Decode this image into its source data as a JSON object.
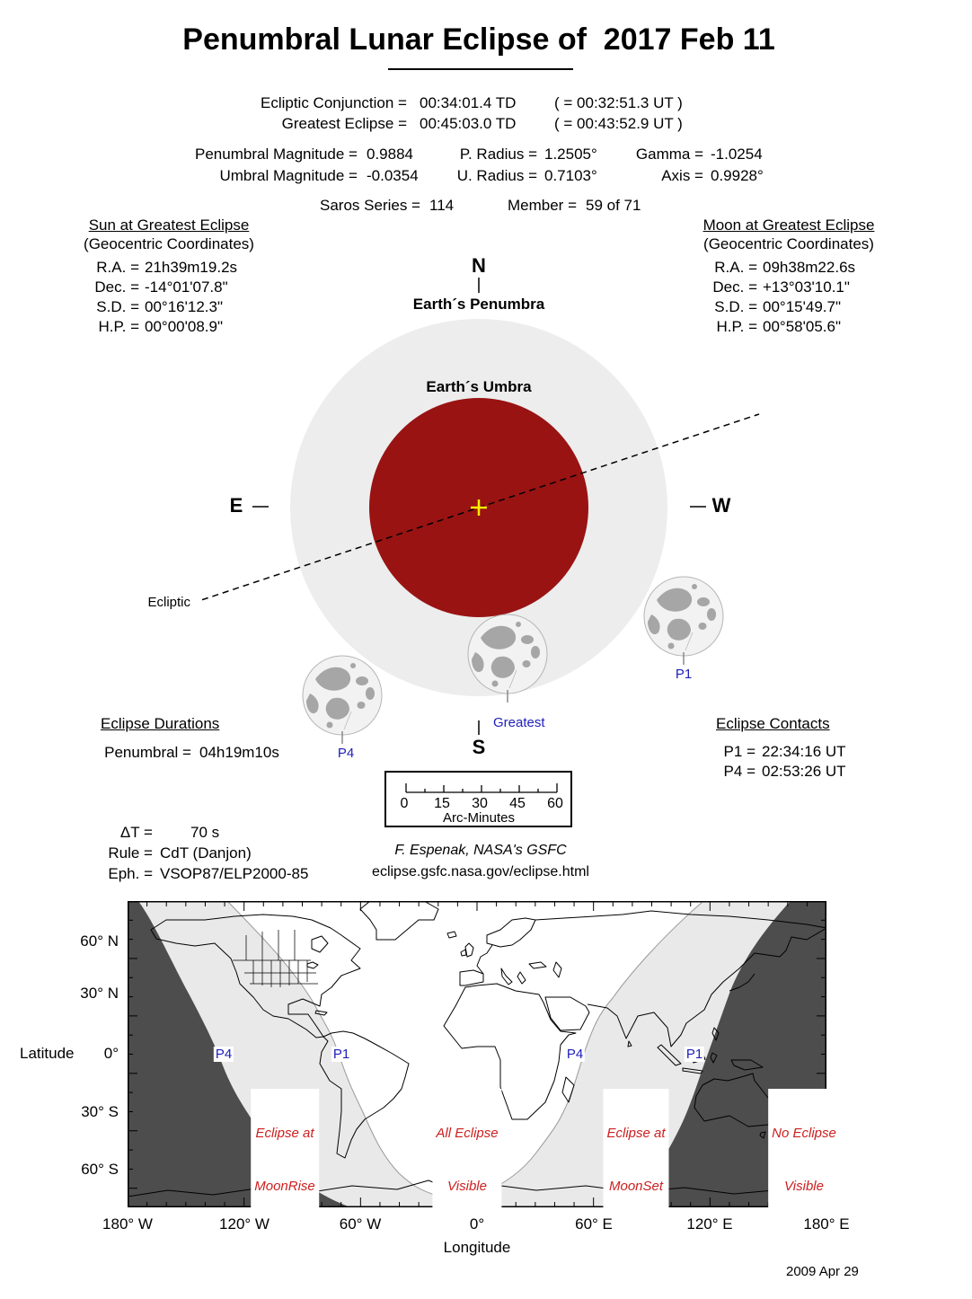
{
  "title": "Penumbral Lunar Eclipse of  2017 Feb 11",
  "header": {
    "conjunction_label": "Ecliptic Conjunction =",
    "conjunction_td": "00:34:01.4 TD",
    "conjunction_ut": "( = 00:32:51.3 UT )",
    "greatest_label": "Greatest Eclipse =",
    "greatest_td": "00:45:03.0 TD",
    "greatest_ut": "( = 00:43:52.9 UT )",
    "pen_mag_label": "Penumbral Magnitude =",
    "pen_mag": "0.9884",
    "umb_mag_label": "Umbral Magnitude =",
    "umb_mag": "-0.0354",
    "p_radius_label": "P. Radius =",
    "p_radius": "1.2505°",
    "u_radius_label": "U. Radius =",
    "u_radius": "0.7103°",
    "gamma_label": "Gamma =",
    "gamma": "-1.0254",
    "axis_label": "Axis =",
    "axis": "0.9928°",
    "saros_label": "Saros Series =",
    "saros": "114",
    "member_label": "Member =",
    "member": "59 of 71"
  },
  "sun": {
    "heading": "Sun at Greatest Eclipse",
    "subheading": "(Geocentric Coordinates)",
    "rows": [
      {
        "label": "R.A. =",
        "value": "21h39m19.2s"
      },
      {
        "label": "Dec. =",
        "value": "-14°01'07.8\""
      },
      {
        "label": "S.D. =",
        "value": "00°16'12.3\""
      },
      {
        "label": "H.P. =",
        "value": "00°00'08.9\""
      }
    ]
  },
  "moon": {
    "heading": "Moon at Greatest Eclipse",
    "subheading": "(Geocentric Coordinates)",
    "rows": [
      {
        "label": "R.A. =",
        "value": "09h38m22.6s"
      },
      {
        "label": "Dec. =",
        "value": "+13°03'10.1\""
      },
      {
        "label": "S.D. =",
        "value": "00°15'49.7\""
      },
      {
        "label": "H.P. =",
        "value": "00°58'05.6\""
      }
    ]
  },
  "diagram": {
    "north": "N",
    "south": "S",
    "east": "E",
    "west": "W",
    "penumbra_label": "Earth´s Penumbra",
    "umbra_label": "Earth´s Umbra",
    "ecliptic_label": "Ecliptic",
    "greatest_label": "Greatest",
    "p1_label": "P1",
    "p4_label": "P4"
  },
  "durations": {
    "heading": "Eclipse Durations",
    "penumbral_label": "Penumbral =",
    "penumbral": "04h19m10s"
  },
  "contacts": {
    "heading": "Eclipse Contacts",
    "rows": [
      {
        "label": "P1 =",
        "value": "22:34:16 UT"
      },
      {
        "label": "P4 =",
        "value": "02:53:26 UT"
      }
    ]
  },
  "scale": {
    "tick_labels": [
      "0",
      "15",
      "30",
      "45",
      "60"
    ],
    "unit_label": "Arc-Minutes"
  },
  "params": {
    "dt_label": "ΔT =",
    "dt": "70 s",
    "rule_label": "Rule =",
    "rule": "CdT (Danjon)",
    "eph_label": "Eph. =",
    "eph": "VSOP87/ELP2000-85"
  },
  "credit": {
    "author": "F. Espenak, NASA's GSFC",
    "url": "eclipse.gsfc.nasa.gov/eclipse.html"
  },
  "map": {
    "lat_axis_title": "Latitude",
    "lon_axis_title": "Longitude",
    "lat_tick_labels": [
      "60° N",
      "30° N",
      "0°",
      "30° S",
      "60° S"
    ],
    "lon_tick_labels": [
      "180° W",
      "120° W",
      "60° W",
      "0°",
      "60° E",
      "120° E",
      "180° E"
    ],
    "markers": [
      {
        "text": "P4"
      },
      {
        "text": "P1"
      },
      {
        "text": "P4"
      },
      {
        "text": "P1"
      }
    ],
    "zones": [
      {
        "line1": "Eclipse at",
        "line2": "MoonRise"
      },
      {
        "line1": "All Eclipse",
        "line2": "Visible"
      },
      {
        "line1": "Eclipse at",
        "line2": "MoonSet"
      },
      {
        "line1": "No Eclipse",
        "line2": "Visible"
      }
    ],
    "date": "2009 Apr 29"
  },
  "colors": {
    "umbra": "#991313",
    "penumbra": "#ededed",
    "map_dark": "#4d4d4d",
    "map_light": "#e9e9e9",
    "label_blue": "#2020bb",
    "label_red": "#cc2020",
    "center_cross": "#ffee00"
  }
}
